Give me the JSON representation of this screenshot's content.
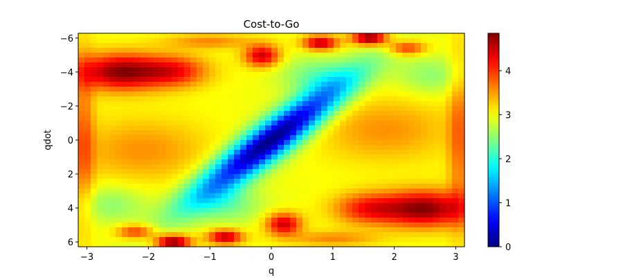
{
  "chart_data": {
    "type": "heatmap",
    "title": "Cost-to-Go",
    "xlabel": "q",
    "ylabel": "qdot",
    "xlim": [
      -3.14159,
      3.14159
    ],
    "ylim": [
      -6.28,
      6.28
    ],
    "y_inverted": true,
    "x_ticks": [
      -3,
      -2,
      -1,
      0,
      1,
      2,
      3
    ],
    "x_tick_labels": [
      "−3",
      "−2",
      "−1",
      "0",
      "1",
      "2",
      "3"
    ],
    "y_ticks": [
      -6,
      -4,
      -2,
      0,
      2,
      4,
      6
    ],
    "y_tick_labels": [
      "−6",
      "−4",
      "−2",
      "0",
      "2",
      "4",
      "6"
    ],
    "colormap": "jet",
    "color_range": [
      0,
      4.85
    ],
    "colorbar_ticks": [
      0,
      1,
      2,
      3,
      4
    ],
    "colorbar_tick_labels": [
      "0",
      "1",
      "2",
      "3",
      "4"
    ],
    "grid": false,
    "value_model": {
      "baseline": 3.0,
      "components": [
        {
          "kind": "valley",
          "q": 0.0,
          "qdot": 0.0,
          "amplitude": -3.0,
          "along": [
            0.32,
            -0.95
          ],
          "sigma_along": 2.7,
          "sigma_across": 0.32
        },
        {
          "kind": "peak",
          "q": -2.45,
          "qdot": -4.0,
          "amplitude": 1.8,
          "sigma_q": 0.5,
          "sigma_qdot": 0.75
        },
        {
          "kind": "peak",
          "q": -1.55,
          "qdot": -4.05,
          "amplitude": 1.05,
          "sigma_q": 0.38,
          "sigma_qdot": 0.65
        },
        {
          "kind": "peak",
          "q": 2.5,
          "qdot": 4.05,
          "amplitude": 1.8,
          "sigma_q": 0.5,
          "sigma_qdot": 0.75
        },
        {
          "kind": "peak",
          "q": 1.55,
          "qdot": 4.05,
          "amplitude": 1.05,
          "sigma_q": 0.38,
          "sigma_qdot": 0.65
        },
        {
          "kind": "peak",
          "q": -2.1,
          "qdot": 0.6,
          "amplitude": 0.55,
          "sigma_q": 0.75,
          "sigma_qdot": 1.3
        },
        {
          "kind": "peak",
          "q": 1.85,
          "qdot": -0.6,
          "amplitude": 0.55,
          "sigma_q": 0.75,
          "sigma_qdot": 1.3
        },
        {
          "kind": "peak",
          "q": -0.15,
          "qdot": -4.95,
          "amplitude": 1.5,
          "sigma_q": 0.2,
          "sigma_qdot": 0.45
        },
        {
          "kind": "peak",
          "q": 0.2,
          "qdot": 4.95,
          "amplitude": 1.5,
          "sigma_q": 0.2,
          "sigma_qdot": 0.45
        },
        {
          "kind": "peak",
          "q": 0.8,
          "qdot": -5.7,
          "amplitude": 1.6,
          "sigma_q": 0.2,
          "sigma_qdot": 0.3
        },
        {
          "kind": "peak",
          "q": -0.75,
          "qdot": 5.7,
          "amplitude": 1.6,
          "sigma_q": 0.2,
          "sigma_qdot": 0.3
        },
        {
          "kind": "peak",
          "q": -1.6,
          "qdot": 6.0,
          "amplitude": 1.9,
          "sigma_q": 0.2,
          "sigma_qdot": 0.3
        },
        {
          "kind": "peak",
          "q": 1.6,
          "qdot": -6.0,
          "amplitude": 1.9,
          "sigma_q": 0.2,
          "sigma_qdot": 0.3
        },
        {
          "kind": "peak",
          "q": -2.2,
          "qdot": 5.4,
          "amplitude": 1.1,
          "sigma_q": 0.22,
          "sigma_qdot": 0.3
        },
        {
          "kind": "peak",
          "q": 2.2,
          "qdot": -5.4,
          "amplitude": 1.1,
          "sigma_q": 0.22,
          "sigma_qdot": 0.3
        },
        {
          "kind": "peak",
          "q": -1.0,
          "qdot": -5.8,
          "amplitude": 0.6,
          "sigma_q": 0.5,
          "sigma_qdot": 0.3
        },
        {
          "kind": "peak",
          "q": 1.0,
          "qdot": 5.8,
          "amplitude": 0.6,
          "sigma_q": 0.5,
          "sigma_qdot": 0.3
        },
        {
          "kind": "peak",
          "q": -3.05,
          "qdot": 0.0,
          "amplitude": 0.7,
          "sigma_q": 0.12,
          "sigma_qdot": 3.5
        },
        {
          "kind": "peak",
          "q": 3.05,
          "qdot": 0.0,
          "amplitude": 0.7,
          "sigma_q": 0.12,
          "sigma_qdot": 3.5
        },
        {
          "kind": "peak",
          "q": -0.7,
          "qdot": 3.8,
          "amplitude": -0.6,
          "sigma_q": 0.4,
          "sigma_qdot": 0.8
        },
        {
          "kind": "peak",
          "q": 0.7,
          "qdot": -3.8,
          "amplitude": -0.6,
          "sigma_q": 0.4,
          "sigma_qdot": 0.8
        },
        {
          "kind": "peak",
          "q": -2.6,
          "qdot": 3.8,
          "amplitude": -0.5,
          "sigma_q": 0.4,
          "sigma_qdot": 0.8
        },
        {
          "kind": "peak",
          "q": 2.6,
          "qdot": -3.8,
          "amplitude": -0.5,
          "sigma_q": 0.4,
          "sigma_qdot": 0.8
        }
      ]
    }
  }
}
